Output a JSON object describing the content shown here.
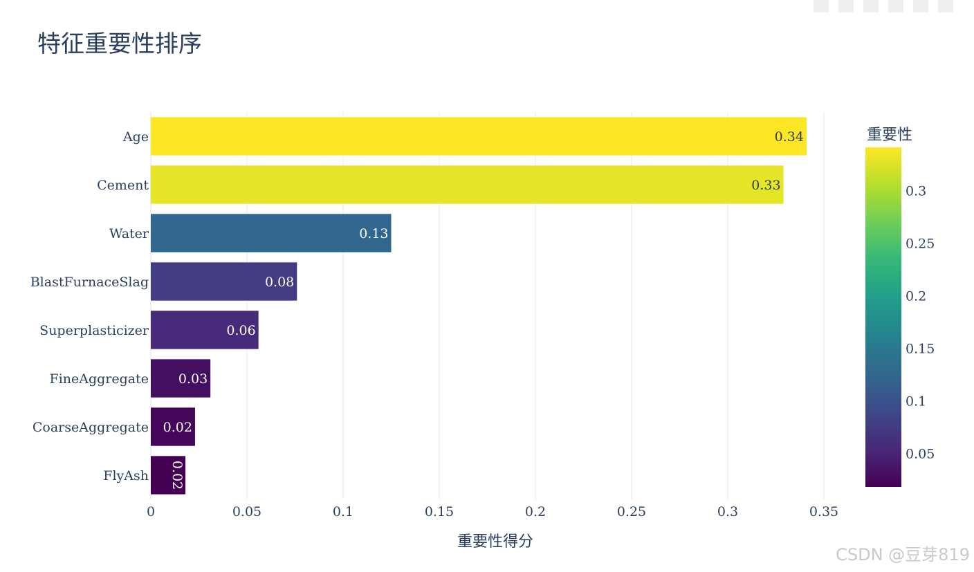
{
  "chart_data": {
    "type": "bar",
    "orientation": "horizontal",
    "title": "特征重要性排序",
    "xlabel": "重要性得分",
    "ylabel": "",
    "xlim": [
      0,
      0.36
    ],
    "x_ticks": [
      0,
      0.05,
      0.1,
      0.15,
      0.2,
      0.25,
      0.3,
      0.35
    ],
    "x_tick_labels": [
      "0",
      "0.05",
      "0.1",
      "0.15",
      "0.2",
      "0.25",
      "0.3",
      "0.35"
    ],
    "grid": true,
    "categories": [
      "Age",
      "Cement",
      "Water",
      "BlastFurnaceSlag",
      "Superplasticizer",
      "FineAggregate",
      "CoarseAggregate",
      "FlyAsh"
    ],
    "values": [
      0.341,
      0.329,
      0.125,
      0.076,
      0.056,
      0.031,
      0.023,
      0.018
    ],
    "data_labels": [
      "0.34",
      "0.33",
      "0.13",
      "0.08",
      "0.06",
      "0.03",
      "0.02",
      "0.02"
    ],
    "colorscale": "Viridis",
    "colorbar": {
      "title": "重要性",
      "range": [
        0.018,
        0.341
      ],
      "ticks": [
        0.05,
        0.1,
        0.15,
        0.2,
        0.25,
        0.3
      ],
      "tick_labels": [
        "0.05",
        "0.1",
        "0.15",
        "0.2",
        "0.25",
        "0.3"
      ]
    },
    "colors": {
      "viridis": [
        "#440154",
        "#482878",
        "#3e4989",
        "#31688e",
        "#26828e",
        "#1f9e89",
        "#35b779",
        "#6ece58",
        "#b5de2b",
        "#fde725"
      ],
      "grid": "#ebf0f8",
      "text": "#2a3f5f"
    }
  },
  "watermark": "CSDN @豆芽819"
}
